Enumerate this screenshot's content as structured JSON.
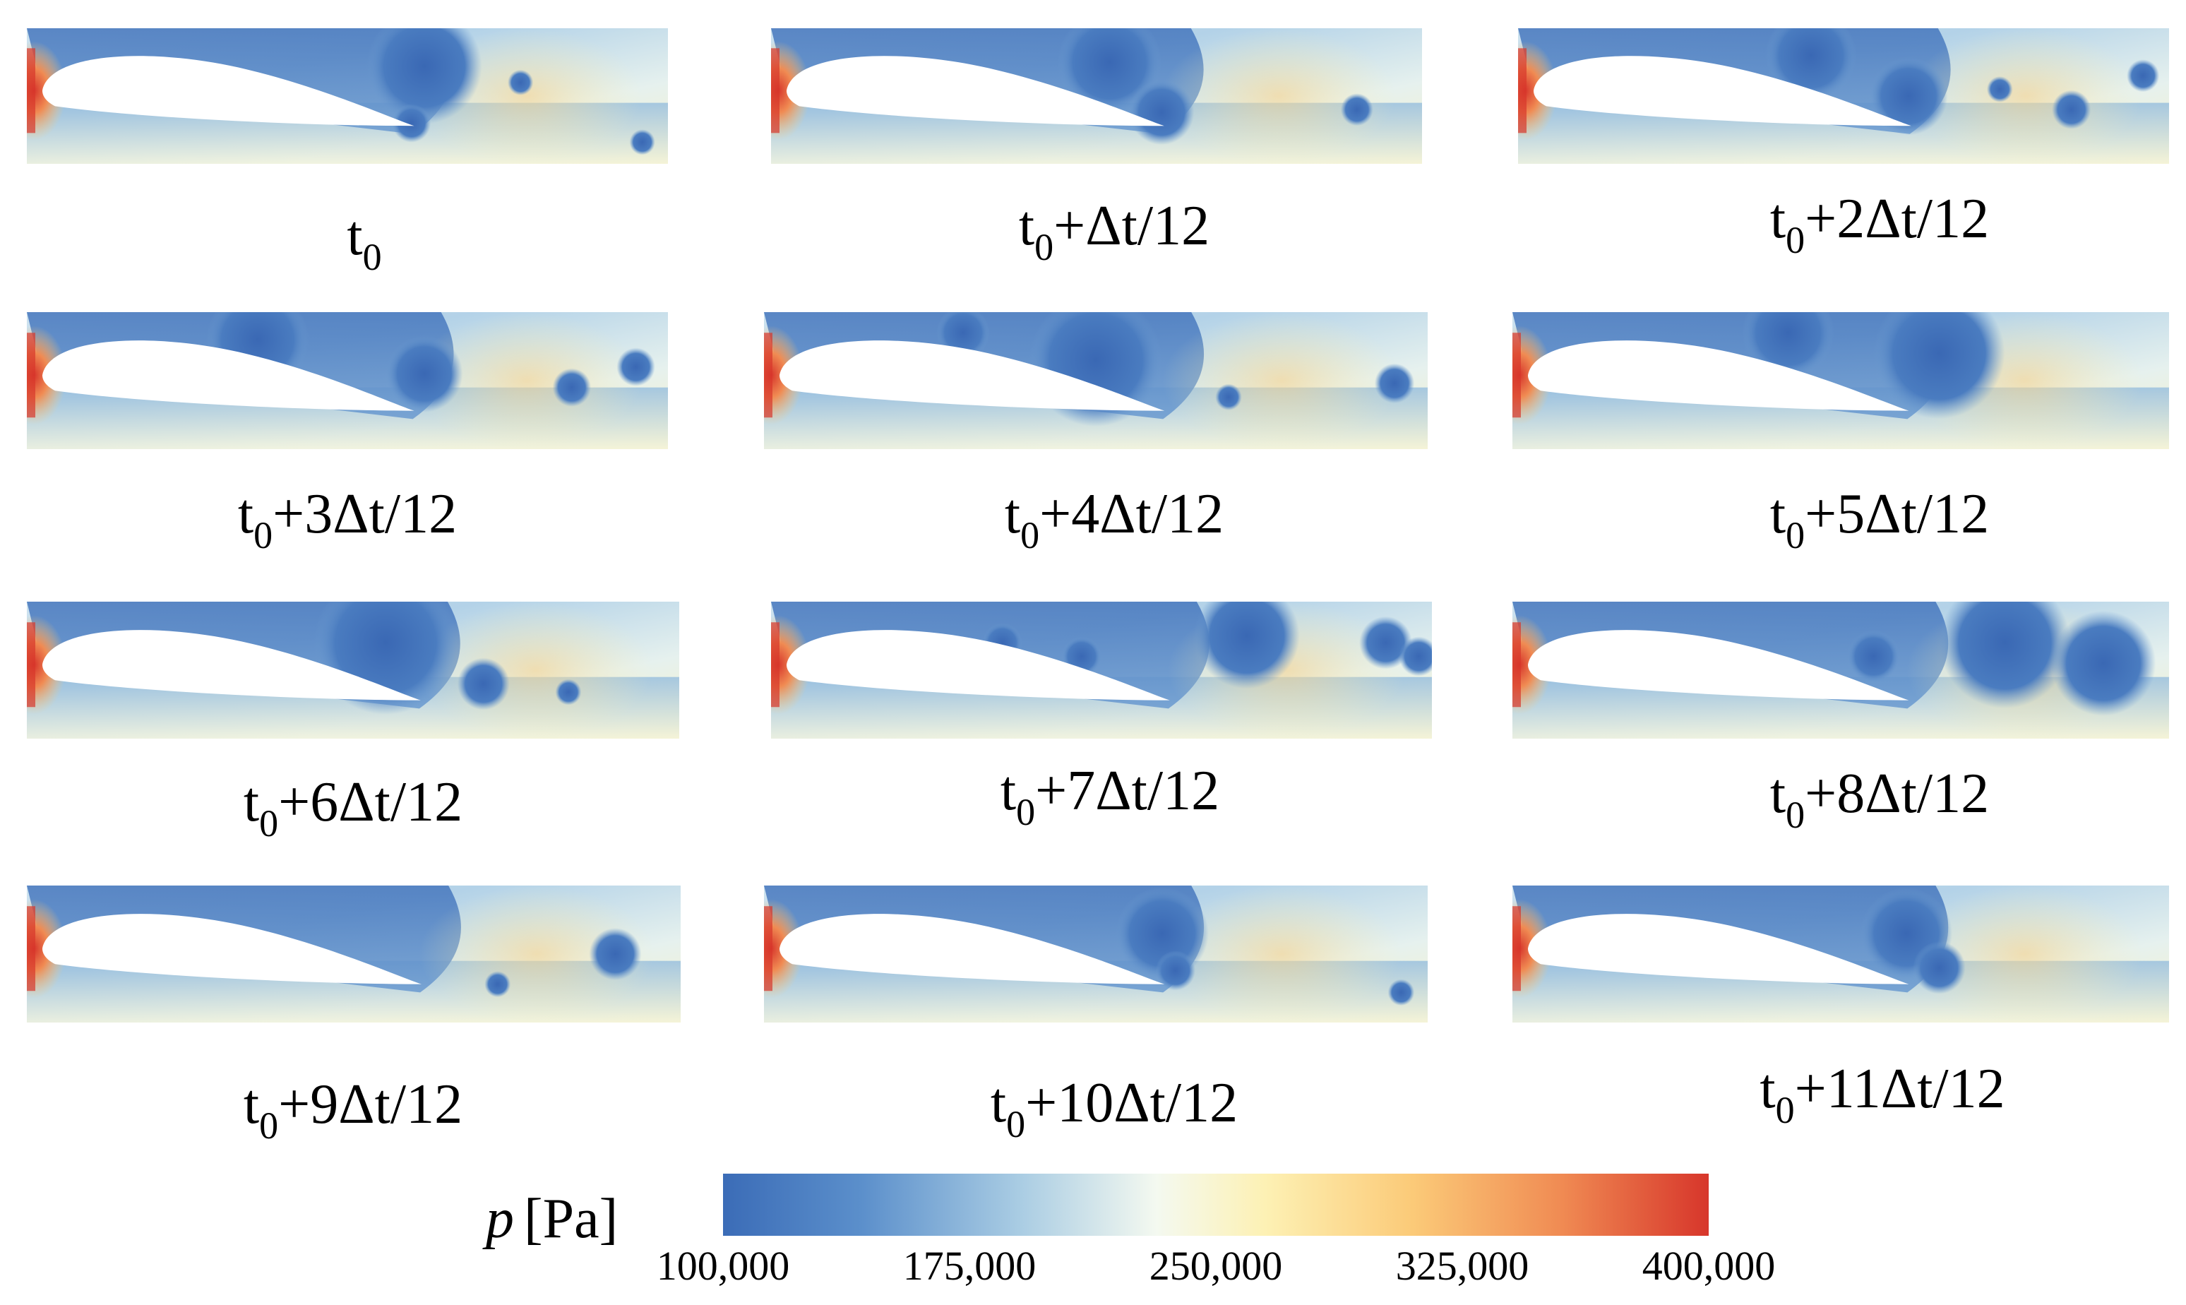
{
  "figure": {
    "colorbar": {
      "symbol": "p",
      "unit": "[Pa]",
      "ticks": [
        "100,000",
        "175,000",
        "250,000",
        "325,000",
        "400,000"
      ],
      "range": [
        100000,
        400000
      ],
      "colormap": [
        "#3b6cb7",
        "#5b8fcb",
        "#a9cce3",
        "#f4f9f0",
        "#fdf1b4",
        "#fbca78",
        "#f08b53",
        "#d7362b"
      ]
    },
    "panels": [
      {
        "base": "t",
        "sub": "0",
        "rest": ""
      },
      {
        "base": "t",
        "sub": "0",
        "rest": "+Δt/12"
      },
      {
        "base": "t",
        "sub": "0",
        "rest": "+2Δt/12"
      },
      {
        "base": "t",
        "sub": "0",
        "rest": "+3Δt/12"
      },
      {
        "base": "t",
        "sub": "0",
        "rest": "+4Δt/12"
      },
      {
        "base": "t",
        "sub": "0",
        "rest": "+5Δt/12"
      },
      {
        "base": "t",
        "sub": "0",
        "rest": "+6Δt/12"
      },
      {
        "base": "t",
        "sub": "0",
        "rest": "+7Δt/12"
      },
      {
        "base": "t",
        "sub": "0",
        "rest": "+8Δt/12"
      },
      {
        "base": "t",
        "sub": "0",
        "rest": "+9Δt/12"
      },
      {
        "base": "t",
        "sub": "0",
        "rest": "+10Δt/12"
      },
      {
        "base": "t",
        "sub": "0",
        "rest": "+11Δt/12"
      }
    ]
  }
}
